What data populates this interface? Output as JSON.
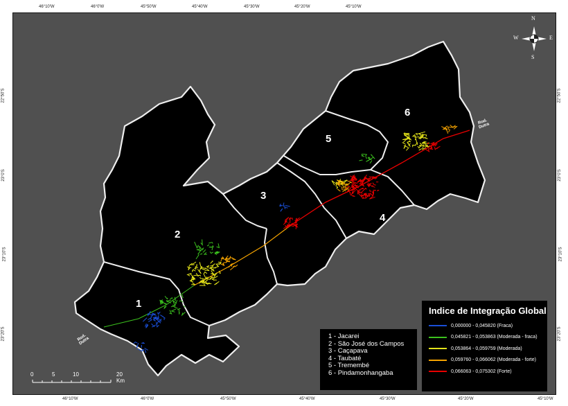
{
  "axes": {
    "top": [
      "46°10'W",
      "46°0'W",
      "45°50'W",
      "45°40'W",
      "45°30'W",
      "45°20'W",
      "45°10'W"
    ],
    "bottom": [
      "46°10'W",
      "46°0'W",
      "45°50'W",
      "45°40'W",
      "45°30'W",
      "45°20'W",
      "45°10'W"
    ],
    "left": [
      "22°50'S",
      "23°0'S",
      "23°10'S",
      "23°20'S"
    ],
    "right": [
      "22°50'S",
      "23°0'S",
      "23°10'S",
      "23°20'S"
    ]
  },
  "compass": {
    "n": "N",
    "s": "S",
    "e": "E",
    "w": "W"
  },
  "regions": [
    "1",
    "2",
    "3",
    "4",
    "5",
    "6"
  ],
  "road_label": {
    "line1": "Rod.",
    "line2": "Dutra"
  },
  "legend": {
    "title": "Indice de Integração Global",
    "items": [
      {
        "label": "0,000000 - 0,045820 (Fraca)",
        "color": "#1a4fd8"
      },
      {
        "label": "0,045821 - 0,053863 (Moderada - fraca)",
        "color": "#3cc21e"
      },
      {
        "label": "0,053864 - 0,059759 (Moderada)",
        "color": "#e4e41a"
      },
      {
        "label": "0,059760 - 0,066062 (Moderada - forte)",
        "color": "#f5a300"
      },
      {
        "label": "0,066063 - 0,075302 (Forte)",
        "color": "#e80000"
      }
    ]
  },
  "municipalities": [
    "1 - Jacarei",
    "2 - São José dos Campos",
    "3 - Caçapava",
    "4 - Taubaté",
    "5 - Tremembé",
    "6 - Pindamonhangaba"
  ],
  "scale_bar": {
    "labels": [
      "0",
      "5",
      "10",
      "20 Km"
    ]
  }
}
